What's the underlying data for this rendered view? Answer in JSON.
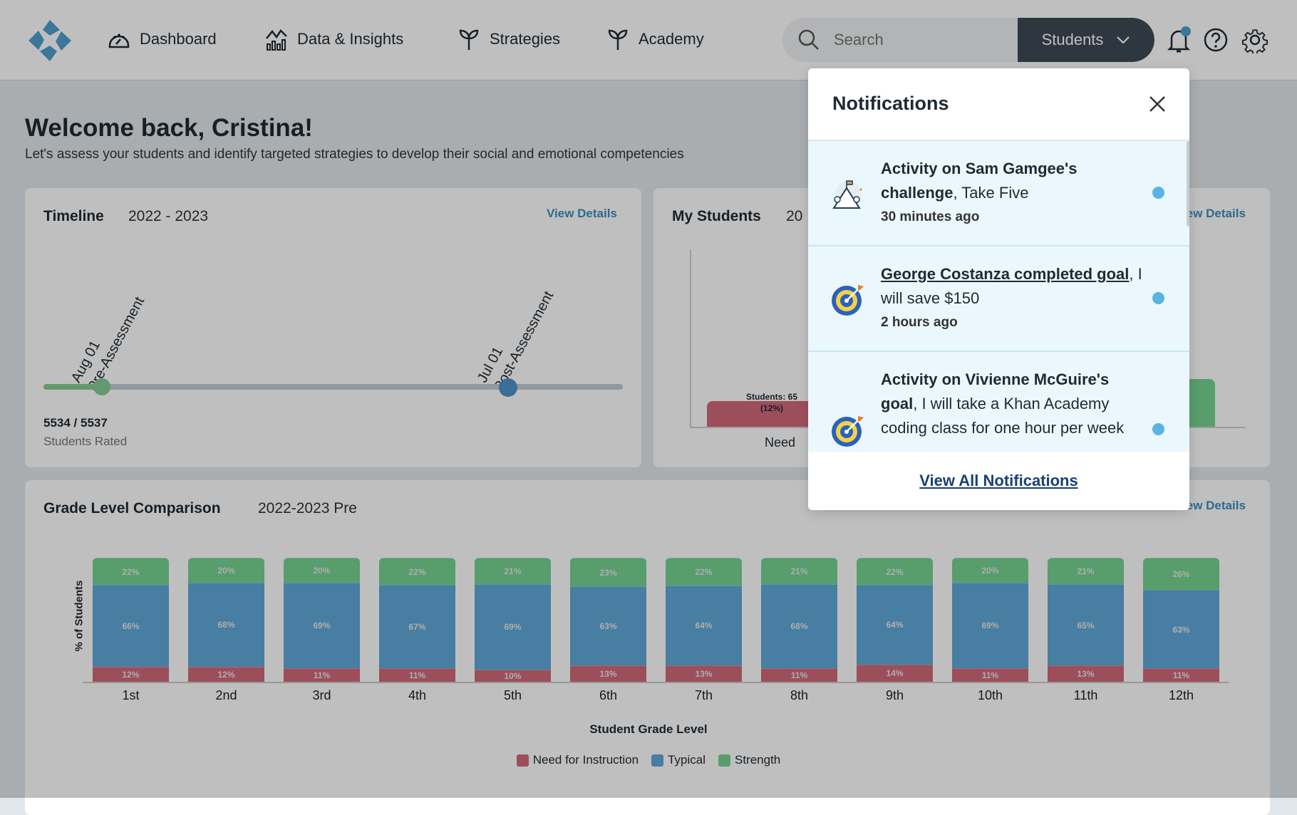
{
  "header": {
    "nav": [
      {
        "label": "Dashboard",
        "icon": "gauge-icon"
      },
      {
        "label": "Data & Insights",
        "icon": "chart-icon"
      },
      {
        "label": "Strategies",
        "icon": "sprout-icon"
      },
      {
        "label": "Academy",
        "icon": "sprout-icon"
      }
    ],
    "search_placeholder": "Search",
    "scope_label": "Students"
  },
  "welcome": {
    "title": "Welcome back, Cristina!",
    "subtitle": "Let's assess your students and identify targeted strategies to develop their social and emotional competencies"
  },
  "timeline": {
    "title": "Timeline",
    "year": "2022 - 2023",
    "view_details": "View Details",
    "milestones": [
      {
        "date": "Aug 01",
        "label": "Pre-Assessment"
      },
      {
        "date": "Jul 01",
        "label": "Post-Assessment"
      }
    ],
    "rated": "5534 / 5537",
    "rated_label": "Students Rated"
  },
  "my_students": {
    "title": "My Students",
    "year": "20",
    "view_details": "View Details",
    "need_label": "Need",
    "need_count": "Students: 65",
    "need_pct": "(12%)"
  },
  "grade": {
    "title": "Grade Level Comparison",
    "period": "2022-2023 Pre",
    "view_details": "View Details"
  },
  "chart_data": {
    "type": "bar",
    "stacked": true,
    "title": "Grade Level Comparison",
    "xlabel": "Student Grade Level",
    "ylabel": "% of Students",
    "ylim": [
      0,
      100
    ],
    "categories": [
      "1st",
      "2nd",
      "3rd",
      "4th",
      "5th",
      "6th",
      "7th",
      "8th",
      "9th",
      "10th",
      "11th",
      "12th"
    ],
    "series": [
      {
        "name": "Need for Instruction",
        "color": "#d2697a",
        "values": [
          12,
          12,
          11,
          11,
          10,
          13,
          13,
          11,
          14,
          11,
          13,
          11
        ]
      },
      {
        "name": "Typical",
        "color": "#5fa8d9",
        "values": [
          66,
          68,
          69,
          67,
          69,
          63,
          64,
          68,
          64,
          69,
          65,
          63
        ]
      },
      {
        "name": "Strength",
        "color": "#76d290",
        "values": [
          22,
          20,
          20,
          22,
          21,
          23,
          22,
          21,
          22,
          20,
          21,
          26
        ]
      }
    ],
    "legend": "bottom"
  },
  "notifications": {
    "title": "Notifications",
    "items": [
      {
        "bold": "Activity on Sam Gamgee's challenge",
        "rest": ", Take Five",
        "time": "30 minutes ago",
        "icon": "mountain-flag-icon"
      },
      {
        "bold": "George Costanza completed goal",
        "rest": ", I will save $150",
        "time": "2 hours ago",
        "icon": "target-icon"
      },
      {
        "bold": "Activity on Vivienne McGuire's goal",
        "rest": ", I will take a Khan Academy coding class for one hour per week",
        "time": "",
        "icon": "target-icon"
      }
    ],
    "view_all": "View All Notifications"
  }
}
